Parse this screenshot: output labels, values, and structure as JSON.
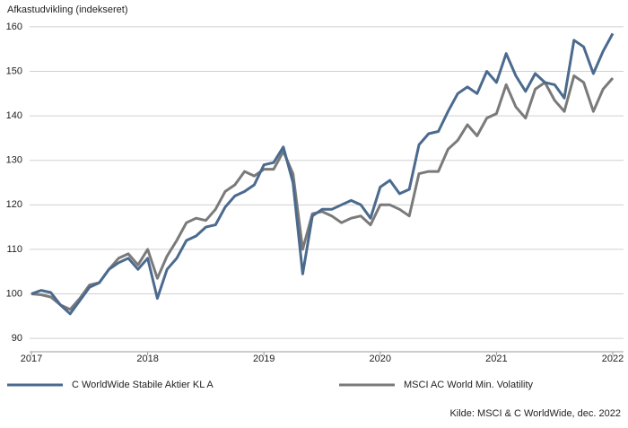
{
  "chart_data": {
    "type": "line",
    "title": "Afkastudvikling (indekseret)",
    "source": "Kilde: MSCI & C WorldWide, dec. 2022",
    "categories": [
      "2017",
      null,
      null,
      null,
      null,
      null,
      null,
      null,
      null,
      null,
      null,
      null,
      "2018",
      null,
      null,
      null,
      null,
      null,
      null,
      null,
      null,
      null,
      null,
      null,
      "2019",
      null,
      null,
      null,
      null,
      null,
      null,
      null,
      null,
      null,
      null,
      null,
      "2020",
      null,
      null,
      null,
      null,
      null,
      null,
      null,
      null,
      null,
      null,
      null,
      "2021",
      null,
      null,
      null,
      null,
      null,
      null,
      null,
      null,
      null,
      null,
      null,
      "2022"
    ],
    "series": [
      {
        "name": "C WorldWide Stabile Aktier KL A",
        "color": "#4a6a8e",
        "values": [
          100,
          100.8,
          100.3,
          97.5,
          95.5,
          98.5,
          101.5,
          102.5,
          105.5,
          107,
          108,
          105.5,
          108,
          99,
          105.5,
          108,
          112,
          113,
          115,
          115.5,
          119.5,
          122,
          123,
          124.5,
          129,
          129.5,
          133,
          125,
          104.5,
          117.5,
          119,
          119,
          120,
          121,
          120,
          117,
          124,
          125.5,
          122.5,
          123.5,
          133.5,
          136,
          136.5,
          141,
          145,
          146.5,
          145,
          150,
          147.5,
          154,
          149,
          145.5,
          149.5,
          147.5,
          147,
          144,
          157,
          155.5,
          149.5,
          154.5,
          158.5
        ]
      },
      {
        "name": "MSCI AC World Min. Volatility",
        "color": "#7a7a7a",
        "values": [
          100,
          99.8,
          99.3,
          97.5,
          96.5,
          99,
          102,
          102.5,
          105.5,
          108,
          109,
          106.5,
          110,
          103.5,
          108.5,
          112,
          116,
          117,
          116.5,
          119,
          123,
          124.5,
          127.5,
          126.5,
          128,
          128,
          132,
          127,
          110,
          118,
          118.5,
          117.5,
          116,
          117,
          117.5,
          115.5,
          120,
          120,
          119,
          117.5,
          127,
          127.5,
          127.5,
          132.5,
          134.5,
          138,
          135.5,
          139.5,
          140.5,
          147,
          142,
          139.5,
          146,
          147.5,
          143.5,
          141,
          149,
          147.5,
          141,
          146,
          148.5
        ]
      }
    ],
    "ylim": [
      87,
      162
    ],
    "yticks": [
      90,
      100,
      110,
      120,
      130,
      140,
      150,
      160
    ],
    "grid": true
  }
}
